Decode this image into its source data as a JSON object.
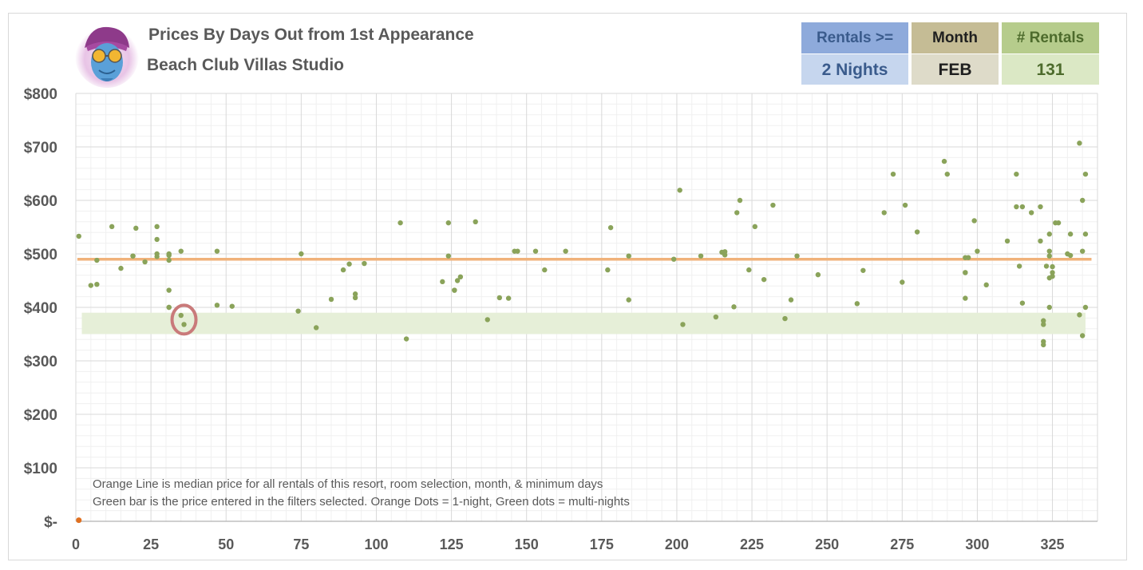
{
  "header": {
    "title": "Prices By Days Out from 1st Appearance",
    "subtitle": "Beach Club Villas Studio",
    "logo_icon": "genie-mascot-icon"
  },
  "filters": {
    "rentals_label": "Rentals >=",
    "rentals_value": "2 Nights",
    "month_label": "Month",
    "month_value": "FEB",
    "count_label": "# Rentals",
    "count_value": "131"
  },
  "chart_data": {
    "type": "scatter",
    "title": "Prices By Days Out from 1st Appearance",
    "xlabel": "",
    "ylabel": "",
    "xlim": [
      0,
      340
    ],
    "ylim": [
      0,
      800
    ],
    "x_ticks": [
      "0",
      "25",
      "50",
      "75",
      "100",
      "125",
      "150",
      "175",
      "200",
      "225",
      "250",
      "275",
      "300",
      "325"
    ],
    "y_ticks": [
      "$-",
      "$100",
      "$200",
      "$300",
      "$400",
      "$500",
      "$600",
      "$700",
      "$800"
    ],
    "grid": true,
    "median_line": 490,
    "filter_band": [
      350,
      390
    ],
    "highlight": {
      "x": 36,
      "y": 377
    },
    "annotations": [
      "Orange Line is median price for all rentals of this resort, room selection, month, & minimum days",
      "Green bar is the price entered in the filters selected. Orange Dots = 1-night, Green dots = multi-nights"
    ],
    "colors": {
      "multi": "#8aa35a",
      "single": "#e07020",
      "median": "#f0b27a",
      "band": "#e6efd8",
      "highlight": "#c97a7a"
    },
    "series": [
      {
        "name": "Orange Dots = 1-night",
        "points": [
          [
            1,
            2
          ]
        ]
      },
      {
        "name": "Green dots = multi-nights",
        "points": [
          [
            1,
            533
          ],
          [
            5,
            441
          ],
          [
            7,
            443
          ],
          [
            7,
            488
          ],
          [
            12,
            551
          ],
          [
            15,
            473
          ],
          [
            19,
            496
          ],
          [
            19,
            496
          ],
          [
            20,
            548
          ],
          [
            23,
            485
          ],
          [
            27,
            551
          ],
          [
            27,
            527
          ],
          [
            27,
            500
          ],
          [
            27,
            495
          ],
          [
            31,
            500
          ],
          [
            31,
            497
          ],
          [
            31,
            488
          ],
          [
            31,
            432
          ],
          [
            31,
            400
          ],
          [
            31,
            400
          ],
          [
            35,
            505
          ],
          [
            35,
            385
          ],
          [
            36,
            368
          ],
          [
            47,
            505
          ],
          [
            47,
            404
          ],
          [
            52,
            402
          ],
          [
            74,
            393
          ],
          [
            75,
            500
          ],
          [
            80,
            362
          ],
          [
            85,
            415
          ],
          [
            89,
            470
          ],
          [
            91,
            481
          ],
          [
            93,
            425
          ],
          [
            93,
            418
          ],
          [
            96,
            482
          ],
          [
            108,
            558
          ],
          [
            110,
            341
          ],
          [
            122,
            448
          ],
          [
            124,
            558
          ],
          [
            124,
            496
          ],
          [
            126,
            432
          ],
          [
            126,
            432
          ],
          [
            127,
            450
          ],
          [
            128,
            457
          ],
          [
            133,
            560
          ],
          [
            137,
            377
          ],
          [
            141,
            418
          ],
          [
            144,
            417
          ],
          [
            146,
            505
          ],
          [
            147,
            505
          ],
          [
            153,
            505
          ],
          [
            156,
            470
          ],
          [
            163,
            505
          ],
          [
            177,
            470
          ],
          [
            178,
            549
          ],
          [
            184,
            496
          ],
          [
            184,
            414
          ],
          [
            199,
            490
          ],
          [
            201,
            619
          ],
          [
            202,
            368
          ],
          [
            208,
            496
          ],
          [
            213,
            382
          ],
          [
            215,
            503
          ],
          [
            216,
            504
          ],
          [
            216,
            498
          ],
          [
            219,
            401
          ],
          [
            220,
            577
          ],
          [
            221,
            600
          ],
          [
            224,
            470
          ],
          [
            226,
            551
          ],
          [
            229,
            452
          ],
          [
            232,
            591
          ],
          [
            236,
            379
          ],
          [
            238,
            414
          ],
          [
            240,
            496
          ],
          [
            247,
            461
          ],
          [
            260,
            407
          ],
          [
            262,
            469
          ],
          [
            269,
            577
          ],
          [
            272,
            649
          ],
          [
            275,
            447
          ],
          [
            276,
            591
          ],
          [
            280,
            541
          ],
          [
            289,
            673
          ],
          [
            290,
            649
          ],
          [
            296,
            493
          ],
          [
            296,
            465
          ],
          [
            296,
            465
          ],
          [
            296,
            417
          ],
          [
            297,
            493
          ],
          [
            299,
            562
          ],
          [
            300,
            505
          ],
          [
            303,
            442
          ],
          [
            310,
            524
          ],
          [
            313,
            649
          ],
          [
            313,
            588
          ],
          [
            314,
            477
          ],
          [
            315,
            588
          ],
          [
            315,
            408
          ],
          [
            318,
            577
          ],
          [
            321,
            588
          ],
          [
            321,
            524
          ],
          [
            322,
            375
          ],
          [
            322,
            368
          ],
          [
            322,
            336
          ],
          [
            322,
            330
          ],
          [
            323,
            477
          ],
          [
            324,
            537
          ],
          [
            324,
            505
          ],
          [
            324,
            496
          ],
          [
            324,
            455
          ],
          [
            324,
            400
          ],
          [
            325,
            476
          ],
          [
            325,
            465
          ],
          [
            325,
            458
          ],
          [
            326,
            558
          ],
          [
            327,
            558
          ],
          [
            330,
            500
          ],
          [
            331,
            537
          ],
          [
            331,
            497
          ],
          [
            334,
            707
          ],
          [
            334,
            386
          ],
          [
            335,
            600
          ],
          [
            335,
            505
          ],
          [
            335,
            347
          ],
          [
            336,
            649
          ],
          [
            336,
            537
          ],
          [
            336,
            400
          ]
        ]
      }
    ]
  }
}
